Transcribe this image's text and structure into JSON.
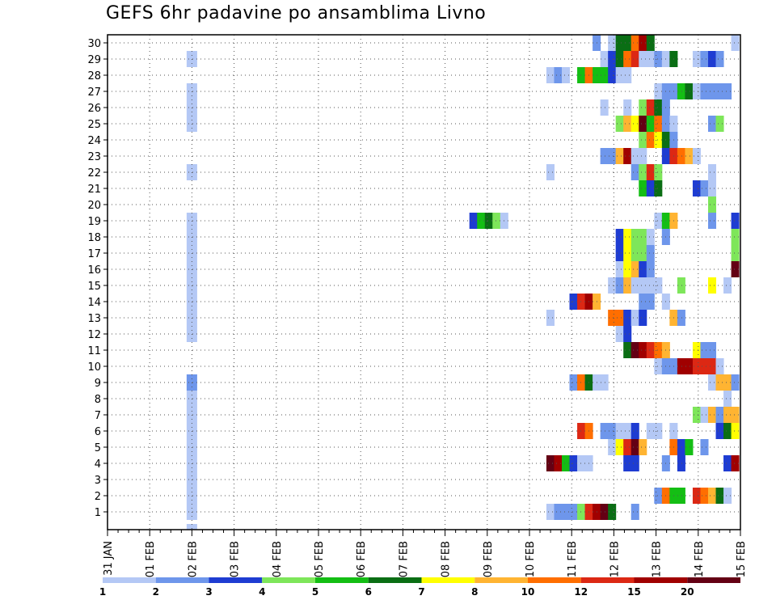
{
  "chart_data": {
    "type": "heatmap",
    "title": "GEFS 6hr padavine po ansamblima Livno",
    "members": [
      1,
      2,
      3,
      4,
      5,
      6,
      7,
      8,
      9,
      10,
      11,
      12,
      13,
      14,
      15,
      16,
      17,
      18,
      19,
      20,
      21,
      22,
      23,
      24,
      25,
      26,
      27,
      28,
      29,
      30
    ],
    "date_labels": [
      "31 JAN",
      "01 FEB",
      "02 FEB",
      "03 FEB",
      "04 FEB",
      "05 FEB",
      "06 FEB",
      "07 FEB",
      "08 FEB",
      "09 FEB",
      "10 FEB",
      "11 FEB",
      "12 FEB",
      "13 FEB",
      "14 FEB",
      "15 FEB"
    ],
    "time_step": "6hr",
    "grid": "dotted",
    "colorbar": {
      "labels": [
        "1",
        "2",
        "3",
        "4",
        "5",
        "6",
        "7",
        "8",
        "10",
        "12",
        "15",
        "20"
      ],
      "colors": [
        "#b4c8f5",
        "#6e96eb",
        "#1e3cd2",
        "#7ee65a",
        "#14be14",
        "#0a6e14",
        "#ffff00",
        "#ffb432",
        "#ff6e00",
        "#dc2814",
        "#a00000",
        "#640014"
      ]
    },
    "cells": [
      {
        "member": 1,
        "step": [
          [
            57,
            0
          ],
          [
            58,
            1
          ],
          [
            59,
            1
          ],
          [
            60,
            1
          ],
          [
            61,
            3
          ],
          [
            62,
            9
          ],
          [
            63,
            10
          ],
          [
            64,
            11
          ],
          [
            65,
            5
          ],
          [
            68,
            1
          ]
        ]
      },
      {
        "member": 2,
        "step": [
          [
            71,
            1
          ],
          [
            72,
            8
          ],
          [
            73,
            4
          ],
          [
            74,
            4
          ],
          [
            76,
            9
          ],
          [
            77,
            8
          ],
          [
            78,
            7
          ],
          [
            79,
            5
          ],
          [
            80,
            0
          ]
        ]
      },
      {
        "member": 4,
        "step": [
          [
            57,
            11
          ],
          [
            58,
            10
          ],
          [
            59,
            4
          ],
          [
            60,
            2
          ],
          [
            61,
            0
          ],
          [
            62,
            0
          ],
          [
            67,
            2
          ],
          [
            68,
            2
          ],
          [
            72,
            1
          ],
          [
            74,
            2
          ],
          [
            80,
            2
          ],
          [
            81,
            10
          ]
        ]
      },
      {
        "member": 5,
        "step": [
          [
            65,
            0
          ],
          [
            66,
            6
          ],
          [
            67,
            9
          ],
          [
            68,
            11
          ],
          [
            69,
            7
          ],
          [
            73,
            8
          ],
          [
            74,
            2
          ],
          [
            75,
            4
          ],
          [
            77,
            1
          ]
        ]
      },
      {
        "member": 6,
        "step": [
          [
            61,
            9
          ],
          [
            62,
            8
          ],
          [
            64,
            1
          ],
          [
            65,
            1
          ],
          [
            66,
            0
          ],
          [
            67,
            0
          ],
          [
            68,
            2
          ],
          [
            70,
            0
          ],
          [
            71,
            0
          ],
          [
            73,
            0
          ],
          [
            79,
            2
          ],
          [
            80,
            5
          ],
          [
            81,
            6
          ]
        ]
      },
      {
        "member": 7,
        "step": [
          [
            76,
            3
          ],
          [
            77,
            0
          ],
          [
            78,
            7
          ],
          [
            79,
            1
          ],
          [
            80,
            7
          ],
          [
            81,
            7
          ]
        ]
      },
      {
        "member": 8,
        "step": [
          [
            80,
            0
          ]
        ]
      },
      {
        "member": 9,
        "step": [
          [
            60,
            1
          ],
          [
            61,
            8
          ],
          [
            62,
            5
          ],
          [
            63,
            0
          ],
          [
            64,
            0
          ],
          [
            78,
            0
          ],
          [
            79,
            7
          ],
          [
            80,
            7
          ],
          [
            81,
            1
          ]
        ]
      },
      {
        "member": 10,
        "step": [
          [
            71,
            0
          ],
          [
            72,
            1
          ],
          [
            73,
            1
          ],
          [
            74,
            10
          ],
          [
            75,
            10
          ],
          [
            76,
            9
          ],
          [
            77,
            9
          ],
          [
            78,
            9
          ],
          [
            79,
            0
          ]
        ]
      },
      {
        "member": 11,
        "step": [
          [
            67,
            5
          ],
          [
            68,
            11
          ],
          [
            69,
            10
          ],
          [
            70,
            9
          ],
          [
            71,
            8
          ],
          [
            72,
            7
          ],
          [
            76,
            6
          ],
          [
            77,
            1
          ],
          [
            78,
            1
          ]
        ]
      },
      {
        "member": 12,
        "step": [
          [
            66,
            0
          ],
          [
            67,
            2
          ]
        ]
      },
      {
        "member": 13,
        "step": [
          [
            57,
            0
          ],
          [
            65,
            8
          ],
          [
            66,
            8
          ],
          [
            67,
            2
          ],
          [
            68,
            0
          ],
          [
            69,
            2
          ],
          [
            73,
            7
          ],
          [
            74,
            1
          ]
        ]
      },
      {
        "member": 14,
        "step": [
          [
            60,
            2
          ],
          [
            61,
            9
          ],
          [
            62,
            10
          ],
          [
            63,
            7
          ],
          [
            69,
            1
          ],
          [
            70,
            1
          ],
          [
            72,
            0
          ]
        ]
      },
      {
        "member": 15,
        "step": [
          [
            65,
            0
          ],
          [
            66,
            1
          ],
          [
            67,
            7
          ],
          [
            68,
            0
          ],
          [
            69,
            0
          ],
          [
            70,
            0
          ],
          [
            71,
            0
          ],
          [
            74,
            3
          ],
          [
            78,
            6
          ],
          [
            80,
            0
          ]
        ]
      },
      {
        "member": 16,
        "step": [
          [
            66,
            0
          ],
          [
            67,
            6
          ],
          [
            68,
            7
          ],
          [
            69,
            2
          ],
          [
            70,
            1
          ],
          [
            81,
            11
          ]
        ]
      },
      {
        "member": 17,
        "step": [
          [
            66,
            2
          ],
          [
            67,
            6
          ],
          [
            68,
            3
          ],
          [
            69,
            3
          ],
          [
            70,
            1
          ],
          [
            81,
            3
          ]
        ]
      },
      {
        "member": 18,
        "step": [
          [
            66,
            2
          ],
          [
            67,
            6
          ],
          [
            68,
            3
          ],
          [
            69,
            3
          ],
          [
            70,
            0
          ],
          [
            72,
            1
          ],
          [
            81,
            3
          ]
        ]
      },
      {
        "member": 19,
        "step": [
          [
            47,
            2
          ],
          [
            48,
            4
          ],
          [
            49,
            5
          ],
          [
            50,
            3
          ],
          [
            51,
            0
          ],
          [
            71,
            0
          ],
          [
            72,
            4
          ],
          [
            73,
            7
          ],
          [
            78,
            1
          ],
          [
            81,
            2
          ]
        ]
      },
      {
        "member": 20,
        "step": [
          [
            78,
            3
          ]
        ]
      },
      {
        "member": 21,
        "step": [
          [
            69,
            4
          ],
          [
            70,
            2
          ],
          [
            71,
            5
          ],
          [
            76,
            2
          ],
          [
            77,
            1
          ],
          [
            78,
            0
          ]
        ]
      },
      {
        "member": 22,
        "step": [
          [
            57,
            0
          ],
          [
            68,
            1
          ],
          [
            69,
            3
          ],
          [
            70,
            9
          ],
          [
            71,
            3
          ],
          [
            78,
            0
          ]
        ]
      },
      {
        "member": 23,
        "step": [
          [
            64,
            1
          ],
          [
            65,
            1
          ],
          [
            66,
            7
          ],
          [
            67,
            10
          ],
          [
            68,
            0
          ],
          [
            69,
            0
          ],
          [
            72,
            2
          ],
          [
            73,
            9
          ],
          [
            74,
            8
          ],
          [
            75,
            7
          ],
          [
            76,
            0
          ]
        ]
      },
      {
        "member": 24,
        "step": [
          [
            69,
            3
          ],
          [
            70,
            8
          ],
          [
            71,
            6
          ],
          [
            72,
            5
          ],
          [
            73,
            1
          ]
        ]
      },
      {
        "member": 25,
        "step": [
          [
            66,
            3
          ],
          [
            67,
            7
          ],
          [
            68,
            6
          ],
          [
            69,
            11
          ],
          [
            70,
            4
          ],
          [
            71,
            8
          ],
          [
            72,
            1
          ],
          [
            73,
            0
          ],
          [
            78,
            1
          ],
          [
            79,
            3
          ]
        ]
      },
      {
        "member": 26,
        "step": [
          [
            64,
            0
          ],
          [
            67,
            0
          ],
          [
            69,
            3
          ],
          [
            70,
            9
          ],
          [
            71,
            5
          ],
          [
            72,
            1
          ]
        ]
      },
      {
        "member": 27,
        "step": [
          [
            71,
            0
          ],
          [
            72,
            1
          ],
          [
            73,
            1
          ],
          [
            74,
            4
          ],
          [
            75,
            5
          ],
          [
            76,
            0
          ],
          [
            77,
            1
          ],
          [
            78,
            1
          ],
          [
            79,
            1
          ],
          [
            80,
            1
          ]
        ]
      },
      {
        "member": 28,
        "step": [
          [
            57,
            0
          ],
          [
            58,
            1
          ],
          [
            59,
            0
          ],
          [
            61,
            4
          ],
          [
            62,
            8
          ],
          [
            63,
            4
          ],
          [
            64,
            4
          ],
          [
            65,
            2
          ],
          [
            66,
            0
          ],
          [
            67,
            0
          ]
        ]
      },
      {
        "member": 29,
        "step": [
          [
            64,
            0
          ],
          [
            65,
            2
          ],
          [
            66,
            5
          ],
          [
            67,
            8
          ],
          [
            68,
            9
          ],
          [
            69,
            0
          ],
          [
            70,
            0
          ],
          [
            71,
            1
          ],
          [
            72,
            0
          ],
          [
            73,
            5
          ],
          [
            76,
            0
          ],
          [
            77,
            1
          ],
          [
            78,
            2
          ],
          [
            79,
            1
          ]
        ]
      },
      {
        "member": 30,
        "step": [
          [
            63,
            1
          ],
          [
            65,
            0
          ],
          [
            66,
            5
          ],
          [
            67,
            5
          ],
          [
            68,
            8
          ],
          [
            69,
            10
          ],
          [
            70,
            5
          ],
          [
            81,
            0
          ]
        ]
      },
      {
        "member_col": "all",
        "step": [
          [
            12,
            0
          ]
        ],
        "note": ""
      }
    ]
  }
}
